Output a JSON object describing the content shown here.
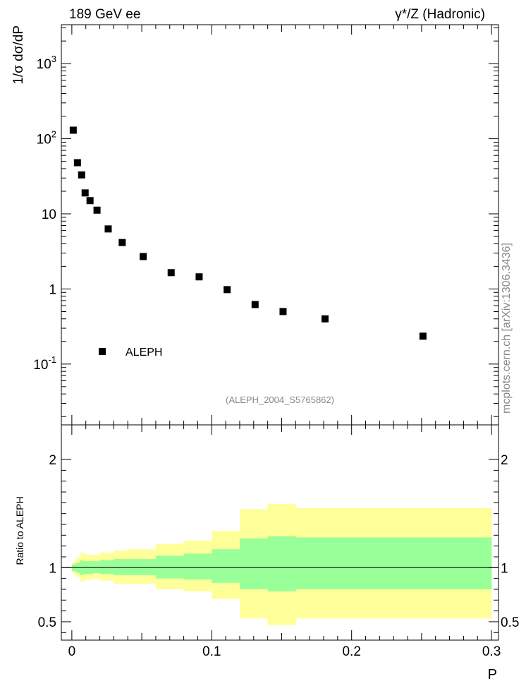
{
  "header": {
    "left": "189 GeV ee",
    "right": "γ*/Z (Hadronic)",
    "side": "mcplots.cern.ch [arXiv:1306.3436]",
    "analysis": "(ALEPH_2004_S5765862)"
  },
  "chart_data": [
    {
      "type": "scatter",
      "name": "main",
      "ylabel": "1/σ  dσ/dP",
      "yscale": "log",
      "xlim": [
        -0.0075,
        0.305
      ],
      "ylim": [
        0.0155,
        3300
      ],
      "ytick_labels": [
        "10^-1",
        "1",
        "10",
        "10^2",
        "10^3"
      ],
      "legend": {
        "label": "ALEPH",
        "position": "bottom-left"
      },
      "series": [
        {
          "name": "ALEPH",
          "x": [
            0.001,
            0.004,
            0.007,
            0.0095,
            0.013,
            0.018,
            0.026,
            0.036,
            0.051,
            0.071,
            0.091,
            0.111,
            0.131,
            0.151,
            0.181,
            0.251
          ],
          "y": [
            130,
            48,
            33,
            19,
            15,
            11.2,
            6.3,
            4.15,
            2.7,
            1.65,
            1.45,
            0.98,
            0.62,
            0.5,
            0.4,
            0.235
          ]
        }
      ]
    },
    {
      "type": "area",
      "name": "ratio",
      "ylabel": "Ratio to ALEPH",
      "xlabel": "P",
      "xlim": [
        -0.0075,
        0.305
      ],
      "ylim": [
        0.33,
        2.32
      ],
      "xtick_labels": [
        "0",
        "0.1",
        "0.2",
        "0.3"
      ],
      "ytick_labels": [
        "0.5",
        "1",
        "2"
      ],
      "bins": [
        0,
        0.002,
        0.004,
        0.006,
        0.008,
        0.01,
        0.015,
        0.02,
        0.03,
        0.04,
        0.06,
        0.08,
        0.1,
        0.12,
        0.14,
        0.16,
        0.2,
        0.3
      ],
      "band_yellow": {
        "color": "#ffff99",
        "lower": [
          0.95,
          0.93,
          0.91,
          0.87,
          0.88,
          0.89,
          0.9,
          0.88,
          0.85,
          0.85,
          0.8,
          0.78,
          0.71,
          0.53,
          0.47,
          0.53,
          0.53
        ],
        "upper": [
          1.05,
          1.08,
          1.1,
          1.14,
          1.13,
          1.12,
          1.12,
          1.14,
          1.16,
          1.17,
          1.22,
          1.25,
          1.34,
          1.54,
          1.59,
          1.55,
          1.55
        ]
      },
      "band_green": {
        "color": "#99ff99",
        "lower": [
          0.97,
          0.96,
          0.95,
          0.93,
          0.94,
          0.94,
          0.95,
          0.94,
          0.93,
          0.93,
          0.9,
          0.89,
          0.86,
          0.8,
          0.78,
          0.8,
          0.8
        ],
        "upper": [
          1.03,
          1.04,
          1.05,
          1.07,
          1.06,
          1.06,
          1.06,
          1.07,
          1.08,
          1.08,
          1.11,
          1.13,
          1.17,
          1.27,
          1.29,
          1.28,
          1.28
        ]
      },
      "reference_line": 1
    }
  ]
}
